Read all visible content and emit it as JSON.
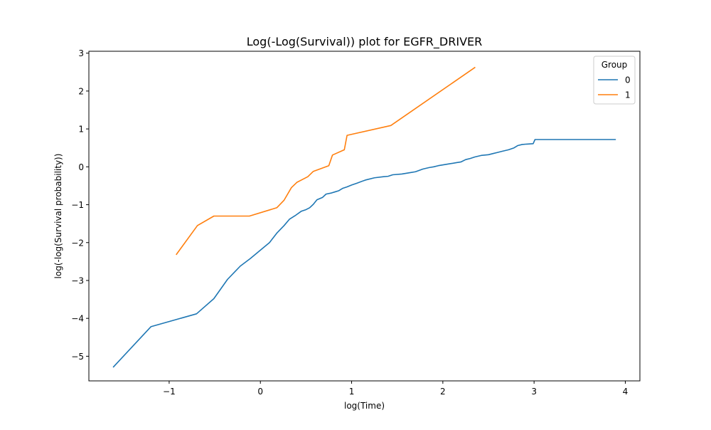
{
  "chart_data": {
    "type": "line",
    "title": "Log(-Log(Survival)) plot for EGFR_DRIVER",
    "xlabel": "log(Time)",
    "ylabel": "log(-log(Survival probability))",
    "xlim": [
      -1.88,
      4.16
    ],
    "ylim": [
      -5.65,
      3.05
    ],
    "xticks": [
      -1,
      0,
      1,
      2,
      3,
      4
    ],
    "xtick_labels": [
      "−1",
      "0",
      "1",
      "2",
      "3",
      "4"
    ],
    "yticks": [
      -5,
      -4,
      -3,
      -2,
      -1,
      0,
      1,
      2,
      3
    ],
    "ytick_labels": [
      "−5",
      "−4",
      "−3",
      "−2",
      "−1",
      "0",
      "1",
      "2",
      "3"
    ],
    "grid": false,
    "legend": {
      "title": "Group",
      "position": "top-right"
    },
    "series": [
      {
        "name": "0",
        "color": "#1f77b4",
        "points": [
          [
            -1.61,
            -5.28
          ],
          [
            -1.2,
            -4.22
          ],
          [
            -0.7,
            -3.88
          ],
          [
            -0.51,
            -3.48
          ],
          [
            -0.36,
            -2.97
          ],
          [
            -0.22,
            -2.62
          ],
          [
            -0.11,
            -2.42
          ],
          [
            0.0,
            -2.2
          ],
          [
            0.1,
            -2.0
          ],
          [
            0.18,
            -1.75
          ],
          [
            0.26,
            -1.55
          ],
          [
            0.32,
            -1.38
          ],
          [
            0.38,
            -1.29
          ],
          [
            0.45,
            -1.17
          ],
          [
            0.5,
            -1.13
          ],
          [
            0.54,
            -1.08
          ],
          [
            0.58,
            -0.99
          ],
          [
            0.62,
            -0.87
          ],
          [
            0.68,
            -0.81
          ],
          [
            0.72,
            -0.72
          ],
          [
            0.78,
            -0.69
          ],
          [
            0.82,
            -0.66
          ],
          [
            0.86,
            -0.63
          ],
          [
            0.9,
            -0.57
          ],
          [
            0.95,
            -0.53
          ],
          [
            1.0,
            -0.48
          ],
          [
            1.06,
            -0.43
          ],
          [
            1.15,
            -0.35
          ],
          [
            1.25,
            -0.29
          ],
          [
            1.35,
            -0.26
          ],
          [
            1.4,
            -0.25
          ],
          [
            1.45,
            -0.21
          ],
          [
            1.55,
            -0.19
          ],
          [
            1.65,
            -0.15
          ],
          [
            1.7,
            -0.13
          ],
          [
            1.78,
            -0.06
          ],
          [
            1.85,
            -0.02
          ],
          [
            1.9,
            0.0
          ],
          [
            1.95,
            0.03
          ],
          [
            2.05,
            0.07
          ],
          [
            2.15,
            0.11
          ],
          [
            2.2,
            0.13
          ],
          [
            2.25,
            0.19
          ],
          [
            2.3,
            0.22
          ],
          [
            2.35,
            0.26
          ],
          [
            2.42,
            0.3
          ],
          [
            2.5,
            0.32
          ],
          [
            2.55,
            0.35
          ],
          [
            2.6,
            0.38
          ],
          [
            2.65,
            0.41
          ],
          [
            2.72,
            0.45
          ],
          [
            2.78,
            0.5
          ],
          [
            2.82,
            0.56
          ],
          [
            2.87,
            0.59
          ],
          [
            2.92,
            0.6
          ],
          [
            2.99,
            0.61
          ],
          [
            3.01,
            0.72
          ],
          [
            3.2,
            0.72
          ],
          [
            3.89,
            0.72
          ]
        ]
      },
      {
        "name": "1",
        "color": "#ff7f0e",
        "points": [
          [
            -0.92,
            -2.31
          ],
          [
            -0.69,
            -1.55
          ],
          [
            -0.51,
            -1.3
          ],
          [
            -0.12,
            -1.3
          ],
          [
            0.18,
            -1.08
          ],
          [
            0.26,
            -0.88
          ],
          [
            0.34,
            -0.55
          ],
          [
            0.4,
            -0.41
          ],
          [
            0.52,
            -0.26
          ],
          [
            0.58,
            -0.12
          ],
          [
            0.75,
            0.03
          ],
          [
            0.79,
            0.31
          ],
          [
            0.92,
            0.45
          ],
          [
            0.95,
            0.83
          ],
          [
            1.43,
            1.09
          ],
          [
            2.35,
            2.62
          ]
        ]
      }
    ]
  }
}
